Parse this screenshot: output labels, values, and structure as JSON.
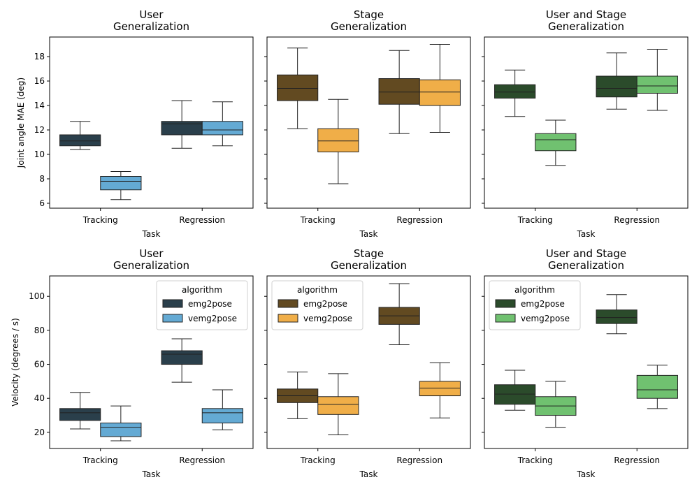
{
  "figure_title": "",
  "chart_data": [
    {
      "type": "box",
      "title_lines": [
        "User",
        "Generalization"
      ],
      "xlabel": "Task",
      "ylabel": "Joint angle MAE (deg)",
      "categories": [
        "Tracking",
        "Regression"
      ],
      "ylim": [
        5.6,
        19.6
      ],
      "yticks": [
        6,
        8,
        10,
        12,
        14,
        16,
        18
      ],
      "show_ytick_labels": true,
      "legend": null,
      "series": [
        {
          "name": "emg2pose",
          "color": "#2a3f4b",
          "boxes": [
            {
              "whislo": 10.4,
              "q1": 10.7,
              "med": 11.1,
              "q3": 11.6,
              "whishi": 12.7
            },
            {
              "whislo": 10.5,
              "q1": 11.6,
              "med": 12.5,
              "q3": 12.7,
              "whishi": 14.4
            }
          ]
        },
        {
          "name": "vemg2pose",
          "color": "#64aad4",
          "boxes": [
            {
              "whislo": 6.3,
              "q1": 7.1,
              "med": 7.8,
              "q3": 8.2,
              "whishi": 8.6
            },
            {
              "whislo": 10.7,
              "q1": 11.6,
              "med": 12.0,
              "q3": 12.7,
              "whishi": 14.3
            }
          ]
        }
      ]
    },
    {
      "type": "box",
      "title_lines": [
        "Stage",
        "Generalization"
      ],
      "xlabel": "Task",
      "ylabel": "",
      "categories": [
        "Tracking",
        "Regression"
      ],
      "ylim": [
        5.6,
        19.6
      ],
      "yticks": [
        6,
        8,
        10,
        12,
        14,
        16,
        18
      ],
      "show_ytick_labels": false,
      "legend": null,
      "series": [
        {
          "name": "emg2pose",
          "color": "#624a21",
          "boxes": [
            {
              "whislo": 12.1,
              "q1": 14.4,
              "med": 15.4,
              "q3": 16.5,
              "whishi": 18.7
            },
            {
              "whislo": 11.7,
              "q1": 14.1,
              "med": 15.1,
              "q3": 16.2,
              "whishi": 18.5
            }
          ]
        },
        {
          "name": "vemg2pose",
          "color": "#f0ae48",
          "boxes": [
            {
              "whislo": 7.6,
              "q1": 10.2,
              "med": 11.1,
              "q3": 12.1,
              "whishi": 14.5
            },
            {
              "whislo": 11.8,
              "q1": 14.0,
              "med": 15.1,
              "q3": 16.1,
              "whishi": 19.0
            }
          ]
        }
      ]
    },
    {
      "type": "box",
      "title_lines": [
        "User and Stage",
        "Generalization"
      ],
      "xlabel": "Task",
      "ylabel": "",
      "categories": [
        "Tracking",
        "Regression"
      ],
      "ylim": [
        5.6,
        19.6
      ],
      "yticks": [
        6,
        8,
        10,
        12,
        14,
        16,
        18
      ],
      "show_ytick_labels": false,
      "legend": null,
      "series": [
        {
          "name": "emg2pose",
          "color": "#2b4b2b",
          "boxes": [
            {
              "whislo": 13.1,
              "q1": 14.6,
              "med": 15.1,
              "q3": 15.7,
              "whishi": 16.9
            },
            {
              "whislo": 13.7,
              "q1": 14.7,
              "med": 15.4,
              "q3": 16.4,
              "whishi": 18.3
            }
          ]
        },
        {
          "name": "vemg2pose",
          "color": "#70c170",
          "boxes": [
            {
              "whislo": 9.1,
              "q1": 10.3,
              "med": 11.2,
              "q3": 11.7,
              "whishi": 12.8
            },
            {
              "whislo": 13.6,
              "q1": 15.0,
              "med": 15.6,
              "q3": 16.4,
              "whishi": 18.6
            }
          ]
        }
      ]
    },
    {
      "type": "box",
      "title_lines": [
        "User",
        "Generalization"
      ],
      "xlabel": "Task",
      "ylabel": "Velocity (degrees / s)",
      "categories": [
        "Tracking",
        "Regression"
      ],
      "ylim": [
        10.5,
        112
      ],
      "yticks": [
        20,
        40,
        60,
        80,
        100
      ],
      "show_ytick_labels": true,
      "legend": {
        "title": "algorithm",
        "position": "top-right"
      },
      "series": [
        {
          "name": "emg2pose",
          "color": "#2a3f4b",
          "boxes": [
            {
              "whislo": 22,
              "q1": 27,
              "med": 31.5,
              "q3": 34,
              "whishi": 43.5
            },
            {
              "whislo": 49.5,
              "q1": 60,
              "med": 66,
              "q3": 68,
              "whishi": 75
            }
          ]
        },
        {
          "name": "vemg2pose",
          "color": "#64aad4",
          "boxes": [
            {
              "whislo": 15,
              "q1": 17.5,
              "med": 23,
              "q3": 25.5,
              "whishi": 35.5
            },
            {
              "whislo": 21.5,
              "q1": 25.5,
              "med": 31.5,
              "q3": 34,
              "whishi": 45
            }
          ]
        }
      ]
    },
    {
      "type": "box",
      "title_lines": [
        "Stage",
        "Generalization"
      ],
      "xlabel": "Task",
      "ylabel": "",
      "categories": [
        "Tracking",
        "Regression"
      ],
      "ylim": [
        10.5,
        112
      ],
      "yticks": [
        20,
        40,
        60,
        80,
        100
      ],
      "show_ytick_labels": false,
      "legend": {
        "title": "algorithm",
        "position": "top-left"
      },
      "series": [
        {
          "name": "emg2pose",
          "color": "#624a21",
          "boxes": [
            {
              "whislo": 28,
              "q1": 37.5,
              "med": 41.5,
              "q3": 45.5,
              "whishi": 55.5
            },
            {
              "whislo": 71.5,
              "q1": 83.5,
              "med": 88.5,
              "q3": 93.5,
              "whishi": 107.5
            }
          ]
        },
        {
          "name": "vemg2pose",
          "color": "#f0ae48",
          "boxes": [
            {
              "whislo": 18.5,
              "q1": 30.5,
              "med": 36.5,
              "q3": 41,
              "whishi": 54.5
            },
            {
              "whislo": 28.5,
              "q1": 41.5,
              "med": 46,
              "q3": 50,
              "whishi": 61
            }
          ]
        }
      ]
    },
    {
      "type": "box",
      "title_lines": [
        "User and Stage",
        "Generalization"
      ],
      "xlabel": "Task",
      "ylabel": "",
      "categories": [
        "Tracking",
        "Regression"
      ],
      "ylim": [
        10.5,
        112
      ],
      "yticks": [
        20,
        40,
        60,
        80,
        100
      ],
      "show_ytick_labels": false,
      "legend": {
        "title": "algorithm",
        "position": "top-left"
      },
      "series": [
        {
          "name": "emg2pose",
          "color": "#2b4b2b",
          "boxes": [
            {
              "whislo": 33,
              "q1": 36.5,
              "med": 42.5,
              "q3": 48,
              "whishi": 56.5
            },
            {
              "whislo": 78,
              "q1": 84,
              "med": 87.5,
              "q3": 92,
              "whishi": 101
            }
          ]
        },
        {
          "name": "vemg2pose",
          "color": "#70c170",
          "boxes": [
            {
              "whislo": 23,
              "q1": 30,
              "med": 35.5,
              "q3": 41,
              "whishi": 50
            },
            {
              "whislo": 34,
              "q1": 40,
              "med": 45,
              "q3": 53.5,
              "whishi": 59.5
            }
          ]
        }
      ]
    }
  ]
}
